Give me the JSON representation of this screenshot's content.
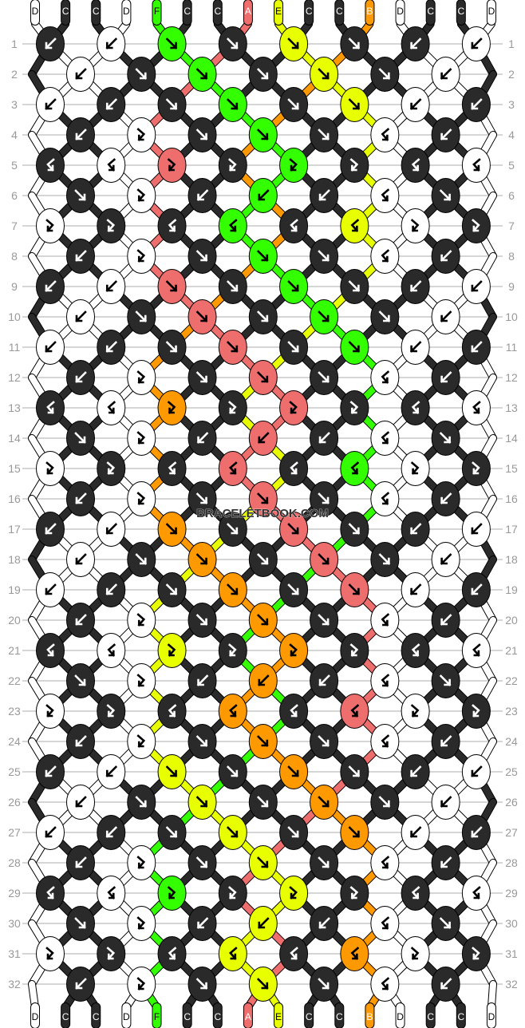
{
  "watermark": "BRACELETBOOK.COM",
  "colors": {
    "D": "#ffffff",
    "C": "#2a2a2a",
    "F": "#33ff00",
    "A": "#ee6e6e",
    "E": "#e8ff00",
    "B": "#ff9900"
  },
  "strings_top": [
    "D",
    "C",
    "C",
    "D",
    "F",
    "C",
    "C",
    "A",
    "E",
    "C",
    "C",
    "B",
    "D",
    "C",
    "C",
    "D"
  ],
  "strings_bottom": [
    "D",
    "C",
    "C",
    "D",
    "F",
    "C",
    "C",
    "A",
    "E",
    "C",
    "C",
    "B",
    "D",
    "C",
    "C",
    "D"
  ],
  "knot_legend": {
    "f": "forward knot (arrow down-right)",
    "b": "backward knot (arrow down-left)",
    "fb": "forward-backward knot",
    "bf": "backward-forward knot"
  },
  "rows": [
    {
      "n": "1",
      "types": [
        "b",
        "b",
        "f",
        "f",
        "f",
        "f",
        "b",
        "b"
      ],
      "colors": [
        "C",
        "D",
        "F",
        "C",
        "E",
        "C",
        "C",
        "D"
      ]
    },
    {
      "n": "2",
      "types": [
        "b",
        "f",
        "f",
        "f",
        "f",
        "f",
        "b"
      ],
      "colors": [
        "D",
        "C",
        "F",
        "C",
        "E",
        "C",
        "D"
      ]
    },
    {
      "n": "3",
      "types": [
        "b",
        "b",
        "f",
        "f",
        "f",
        "f",
        "b",
        "b"
      ],
      "colors": [
        "D",
        "C",
        "C",
        "F",
        "C",
        "E",
        "D",
        "C"
      ]
    },
    {
      "n": "4",
      "types": [
        "b",
        "fb",
        "f",
        "f",
        "f",
        "bf",
        "b"
      ],
      "colors": [
        "C",
        "D",
        "C",
        "F",
        "C",
        "D",
        "C"
      ]
    },
    {
      "n": "5",
      "types": [
        "bf",
        "bf",
        "fb",
        "fb",
        "fb",
        "fb",
        "bf",
        "bf"
      ],
      "colors": [
        "C",
        "D",
        "A",
        "C",
        "F",
        "C",
        "C",
        "D"
      ]
    },
    {
      "n": "6",
      "types": [
        "f",
        "fb",
        "b",
        "b",
        "b",
        "bf",
        "f"
      ],
      "colors": [
        "C",
        "D",
        "C",
        "F",
        "C",
        "D",
        "C"
      ]
    },
    {
      "n": "7",
      "types": [
        "fb",
        "fb",
        "bf",
        "bf",
        "bf",
        "bf",
        "fb",
        "fb"
      ],
      "colors": [
        "D",
        "C",
        "C",
        "F",
        "C",
        "E",
        "D",
        "C"
      ]
    },
    {
      "n": "8",
      "types": [
        "b",
        "fb",
        "f",
        "f",
        "f",
        "bf",
        "b"
      ],
      "colors": [
        "C",
        "D",
        "C",
        "F",
        "C",
        "D",
        "C"
      ]
    },
    {
      "n": "9",
      "types": [
        "b",
        "b",
        "f",
        "f",
        "f",
        "f",
        "b",
        "b"
      ],
      "colors": [
        "C",
        "D",
        "A",
        "C",
        "F",
        "C",
        "C",
        "D"
      ]
    },
    {
      "n": "10",
      "types": [
        "b",
        "f",
        "f",
        "f",
        "f",
        "f",
        "b"
      ],
      "colors": [
        "D",
        "C",
        "A",
        "C",
        "F",
        "C",
        "D"
      ]
    },
    {
      "n": "11",
      "types": [
        "b",
        "b",
        "f",
        "f",
        "f",
        "f",
        "b",
        "b"
      ],
      "colors": [
        "D",
        "C",
        "C",
        "A",
        "C",
        "F",
        "D",
        "C"
      ]
    },
    {
      "n": "12",
      "types": [
        "b",
        "fb",
        "f",
        "f",
        "f",
        "bf",
        "b"
      ],
      "colors": [
        "C",
        "D",
        "C",
        "A",
        "C",
        "D",
        "C"
      ]
    },
    {
      "n": "13",
      "types": [
        "bf",
        "bf",
        "fb",
        "fb",
        "fb",
        "fb",
        "bf",
        "bf"
      ],
      "colors": [
        "C",
        "D",
        "B",
        "C",
        "A",
        "C",
        "C",
        "D"
      ]
    },
    {
      "n": "14",
      "types": [
        "f",
        "fb",
        "b",
        "b",
        "b",
        "bf",
        "f"
      ],
      "colors": [
        "C",
        "D",
        "C",
        "A",
        "C",
        "D",
        "C"
      ]
    },
    {
      "n": "15",
      "types": [
        "fb",
        "fb",
        "bf",
        "bf",
        "bf",
        "bf",
        "fb",
        "fb"
      ],
      "colors": [
        "D",
        "C",
        "C",
        "A",
        "C",
        "F",
        "D",
        "C"
      ]
    },
    {
      "n": "16",
      "types": [
        "b",
        "fb",
        "f",
        "f",
        "f",
        "bf",
        "b"
      ],
      "colors": [
        "C",
        "D",
        "C",
        "A",
        "C",
        "D",
        "C"
      ]
    },
    {
      "n": "17",
      "types": [
        "b",
        "b",
        "f",
        "f",
        "f",
        "f",
        "b",
        "b"
      ],
      "colors": [
        "C",
        "D",
        "B",
        "C",
        "A",
        "C",
        "C",
        "D"
      ]
    },
    {
      "n": "18",
      "types": [
        "b",
        "f",
        "f",
        "f",
        "f",
        "f",
        "b"
      ],
      "colors": [
        "D",
        "C",
        "B",
        "C",
        "A",
        "C",
        "D"
      ]
    },
    {
      "n": "19",
      "types": [
        "b",
        "b",
        "f",
        "f",
        "f",
        "f",
        "b",
        "b"
      ],
      "colors": [
        "D",
        "C",
        "C",
        "B",
        "C",
        "A",
        "D",
        "C"
      ]
    },
    {
      "n": "20",
      "types": [
        "b",
        "fb",
        "f",
        "f",
        "f",
        "bf",
        "b"
      ],
      "colors": [
        "C",
        "D",
        "C",
        "B",
        "C",
        "D",
        "C"
      ]
    },
    {
      "n": "21",
      "types": [
        "bf",
        "bf",
        "fb",
        "fb",
        "fb",
        "fb",
        "bf",
        "bf"
      ],
      "colors": [
        "C",
        "D",
        "E",
        "C",
        "B",
        "C",
        "C",
        "D"
      ]
    },
    {
      "n": "22",
      "types": [
        "f",
        "fb",
        "b",
        "b",
        "b",
        "bf",
        "f"
      ],
      "colors": [
        "C",
        "D",
        "C",
        "B",
        "C",
        "D",
        "C"
      ]
    },
    {
      "n": "23",
      "types": [
        "fb",
        "fb",
        "bf",
        "bf",
        "bf",
        "bf",
        "fb",
        "fb"
      ],
      "colors": [
        "D",
        "C",
        "C",
        "B",
        "C",
        "A",
        "D",
        "C"
      ]
    },
    {
      "n": "24",
      "types": [
        "b",
        "fb",
        "f",
        "f",
        "f",
        "bf",
        "b"
      ],
      "colors": [
        "C",
        "D",
        "C",
        "B",
        "C",
        "D",
        "C"
      ]
    },
    {
      "n": "25",
      "types": [
        "b",
        "b",
        "f",
        "f",
        "f",
        "f",
        "b",
        "b"
      ],
      "colors": [
        "C",
        "D",
        "E",
        "C",
        "B",
        "C",
        "C",
        "D"
      ]
    },
    {
      "n": "26",
      "types": [
        "b",
        "f",
        "f",
        "f",
        "f",
        "f",
        "b"
      ],
      "colors": [
        "D",
        "C",
        "E",
        "C",
        "B",
        "C",
        "D"
      ]
    },
    {
      "n": "27",
      "types": [
        "b",
        "b",
        "f",
        "f",
        "f",
        "f",
        "b",
        "b"
      ],
      "colors": [
        "D",
        "C",
        "C",
        "E",
        "C",
        "B",
        "D",
        "C"
      ]
    },
    {
      "n": "28",
      "types": [
        "b",
        "fb",
        "f",
        "f",
        "f",
        "bf",
        "b"
      ],
      "colors": [
        "C",
        "D",
        "C",
        "E",
        "C",
        "D",
        "C"
      ]
    },
    {
      "n": "29",
      "types": [
        "bf",
        "bf",
        "fb",
        "fb",
        "fb",
        "fb",
        "bf",
        "bf"
      ],
      "colors": [
        "C",
        "D",
        "F",
        "C",
        "E",
        "C",
        "C",
        "D"
      ]
    },
    {
      "n": "30",
      "types": [
        "f",
        "fb",
        "b",
        "b",
        "b",
        "bf",
        "f"
      ],
      "colors": [
        "C",
        "D",
        "C",
        "E",
        "C",
        "D",
        "C"
      ]
    },
    {
      "n": "31",
      "types": [
        "fb",
        "fb",
        "bf",
        "bf",
        "bf",
        "bf",
        "fb",
        "fb"
      ],
      "colors": [
        "D",
        "C",
        "C",
        "E",
        "C",
        "B",
        "D",
        "C"
      ]
    },
    {
      "n": "32",
      "types": [
        "b",
        "fb",
        "f",
        "f",
        "f",
        "bf",
        "b"
      ],
      "colors": [
        "C",
        "D",
        "C",
        "E",
        "C",
        "D",
        "C"
      ]
    }
  ]
}
